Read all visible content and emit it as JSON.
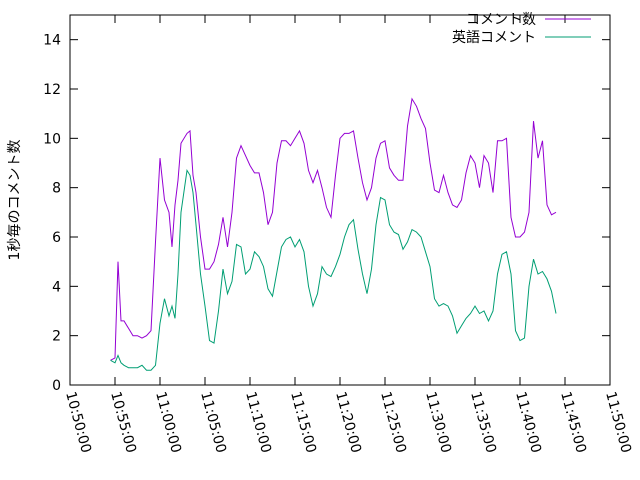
{
  "chart_data": {
    "type": "line",
    "ylabel": "1秒毎のコメント数",
    "xlim": [
      "10:50:00",
      "11:50:00"
    ],
    "ylim": [
      0,
      15
    ],
    "x_ticks": [
      "10:50:00",
      "10:55:00",
      "11:00:00",
      "11:05:00",
      "11:10:00",
      "11:15:00",
      "11:20:00",
      "11:25:00",
      "11:30:00",
      "11:35:00",
      "11:40:00",
      "11:45:00",
      "11:50:00"
    ],
    "y_ticks": [
      0,
      2,
      4,
      6,
      8,
      10,
      12,
      14
    ],
    "grid": false,
    "legend_position": "top-right",
    "series": [
      {
        "name": "コメント数",
        "color": "#9400d3",
        "points": [
          [
            "10:54:30",
            1.0
          ],
          [
            "10:55:00",
            1.1
          ],
          [
            "10:55:20",
            5.0
          ],
          [
            "10:55:40",
            2.6
          ],
          [
            "10:56:00",
            2.6
          ],
          [
            "10:56:30",
            2.3
          ],
          [
            "10:57:00",
            2.0
          ],
          [
            "10:57:30",
            2.0
          ],
          [
            "10:58:00",
            1.9
          ],
          [
            "10:58:30",
            2.0
          ],
          [
            "10:59:00",
            2.2
          ],
          [
            "10:59:30",
            5.8
          ],
          [
            "11:00:00",
            9.2
          ],
          [
            "11:00:30",
            7.5
          ],
          [
            "11:01:00",
            7.0
          ],
          [
            "11:01:20",
            5.6
          ],
          [
            "11:01:40",
            7.3
          ],
          [
            "11:02:00",
            8.3
          ],
          [
            "11:02:20",
            9.8
          ],
          [
            "11:03:00",
            10.2
          ],
          [
            "11:03:20",
            10.3
          ],
          [
            "11:03:40",
            8.5
          ],
          [
            "11:04:00",
            7.8
          ],
          [
            "11:04:30",
            6.0
          ],
          [
            "11:05:00",
            4.7
          ],
          [
            "11:05:30",
            4.7
          ],
          [
            "11:06:00",
            5.0
          ],
          [
            "11:06:30",
            5.7
          ],
          [
            "11:07:00",
            6.8
          ],
          [
            "11:07:30",
            5.6
          ],
          [
            "11:08:00",
            7.0
          ],
          [
            "11:08:30",
            9.2
          ],
          [
            "11:09:00",
            9.7
          ],
          [
            "11:09:30",
            9.3
          ],
          [
            "11:10:00",
            8.9
          ],
          [
            "11:10:30",
            8.6
          ],
          [
            "11:11:00",
            8.6
          ],
          [
            "11:11:30",
            7.8
          ],
          [
            "11:12:00",
            6.5
          ],
          [
            "11:12:30",
            7.0
          ],
          [
            "11:13:00",
            9.0
          ],
          [
            "11:13:30",
            9.9
          ],
          [
            "11:14:00",
            9.9
          ],
          [
            "11:14:30",
            9.7
          ],
          [
            "11:15:00",
            10.0
          ],
          [
            "11:15:30",
            10.3
          ],
          [
            "11:16:00",
            9.8
          ],
          [
            "11:16:30",
            8.7
          ],
          [
            "11:17:00",
            8.2
          ],
          [
            "11:17:30",
            8.7
          ],
          [
            "11:18:00",
            8.0
          ],
          [
            "11:18:30",
            7.2
          ],
          [
            "11:19:00",
            6.8
          ],
          [
            "11:19:30",
            8.5
          ],
          [
            "11:20:00",
            10.0
          ],
          [
            "11:20:30",
            10.2
          ],
          [
            "11:21:00",
            10.2
          ],
          [
            "11:21:30",
            10.3
          ],
          [
            "11:22:00",
            9.2
          ],
          [
            "11:22:30",
            8.2
          ],
          [
            "11:23:00",
            7.5
          ],
          [
            "11:23:30",
            8.0
          ],
          [
            "11:24:00",
            9.2
          ],
          [
            "11:24:30",
            9.8
          ],
          [
            "11:25:00",
            9.9
          ],
          [
            "11:25:30",
            8.8
          ],
          [
            "11:26:00",
            8.5
          ],
          [
            "11:26:30",
            8.3
          ],
          [
            "11:27:00",
            8.3
          ],
          [
            "11:27:30",
            10.5
          ],
          [
            "11:28:00",
            11.6
          ],
          [
            "11:28:30",
            11.3
          ],
          [
            "11:29:00",
            10.8
          ],
          [
            "11:29:30",
            10.4
          ],
          [
            "11:30:00",
            9.0
          ],
          [
            "11:30:30",
            7.9
          ],
          [
            "11:31:00",
            7.8
          ],
          [
            "11:31:30",
            8.5
          ],
          [
            "11:32:00",
            7.8
          ],
          [
            "11:32:30",
            7.3
          ],
          [
            "11:33:00",
            7.2
          ],
          [
            "11:33:30",
            7.5
          ],
          [
            "11:34:00",
            8.6
          ],
          [
            "11:34:30",
            9.3
          ],
          [
            "11:35:00",
            9.0
          ],
          [
            "11:35:30",
            8.0
          ],
          [
            "11:36:00",
            9.3
          ],
          [
            "11:36:30",
            9.0
          ],
          [
            "11:37:00",
            7.8
          ],
          [
            "11:37:30",
            9.9
          ],
          [
            "11:38:00",
            9.9
          ],
          [
            "11:38:30",
            10.0
          ],
          [
            "11:39:00",
            6.8
          ],
          [
            "11:39:30",
            6.0
          ],
          [
            "11:40:00",
            6.0
          ],
          [
            "11:40:30",
            6.2
          ],
          [
            "11:41:00",
            7.0
          ],
          [
            "11:41:30",
            10.7
          ],
          [
            "11:42:00",
            9.2
          ],
          [
            "11:42:30",
            9.9
          ],
          [
            "11:43:00",
            7.3
          ],
          [
            "11:43:30",
            6.9
          ],
          [
            "11:44:00",
            7.0
          ]
        ]
      },
      {
        "name": "英語コメント",
        "color": "#009e73",
        "points": [
          [
            "10:54:30",
            1.0
          ],
          [
            "10:55:00",
            0.9
          ],
          [
            "10:55:20",
            1.2
          ],
          [
            "10:55:40",
            0.9
          ],
          [
            "10:56:00",
            0.8
          ],
          [
            "10:56:30",
            0.7
          ],
          [
            "10:57:00",
            0.7
          ],
          [
            "10:57:30",
            0.7
          ],
          [
            "10:58:00",
            0.8
          ],
          [
            "10:58:30",
            0.6
          ],
          [
            "10:59:00",
            0.6
          ],
          [
            "10:59:30",
            0.8
          ],
          [
            "11:00:00",
            2.5
          ],
          [
            "11:00:30",
            3.5
          ],
          [
            "11:01:00",
            2.8
          ],
          [
            "11:01:20",
            3.2
          ],
          [
            "11:01:40",
            2.7
          ],
          [
            "11:02:00",
            4.5
          ],
          [
            "11:02:20",
            7.0
          ],
          [
            "11:03:00",
            8.7
          ],
          [
            "11:03:20",
            8.5
          ],
          [
            "11:03:40",
            7.8
          ],
          [
            "11:04:00",
            6.5
          ],
          [
            "11:04:30",
            4.5
          ],
          [
            "11:05:00",
            3.2
          ],
          [
            "11:05:30",
            1.8
          ],
          [
            "11:06:00",
            1.7
          ],
          [
            "11:06:30",
            3.0
          ],
          [
            "11:07:00",
            4.7
          ],
          [
            "11:07:30",
            3.7
          ],
          [
            "11:08:00",
            4.2
          ],
          [
            "11:08:30",
            5.7
          ],
          [
            "11:09:00",
            5.6
          ],
          [
            "11:09:30",
            4.5
          ],
          [
            "11:10:00",
            4.7
          ],
          [
            "11:10:30",
            5.4
          ],
          [
            "11:11:00",
            5.2
          ],
          [
            "11:11:30",
            4.8
          ],
          [
            "11:12:00",
            3.9
          ],
          [
            "11:12:30",
            3.6
          ],
          [
            "11:13:00",
            4.6
          ],
          [
            "11:13:30",
            5.6
          ],
          [
            "11:14:00",
            5.9
          ],
          [
            "11:14:30",
            6.0
          ],
          [
            "11:15:00",
            5.6
          ],
          [
            "11:15:30",
            5.9
          ],
          [
            "11:16:00",
            5.4
          ],
          [
            "11:16:30",
            4.0
          ],
          [
            "11:17:00",
            3.2
          ],
          [
            "11:17:30",
            3.7
          ],
          [
            "11:18:00",
            4.8
          ],
          [
            "11:18:30",
            4.5
          ],
          [
            "11:19:00",
            4.4
          ],
          [
            "11:19:30",
            4.8
          ],
          [
            "11:20:00",
            5.3
          ],
          [
            "11:20:30",
            6.0
          ],
          [
            "11:21:00",
            6.5
          ],
          [
            "11:21:30",
            6.7
          ],
          [
            "11:22:00",
            5.5
          ],
          [
            "11:22:30",
            4.5
          ],
          [
            "11:23:00",
            3.7
          ],
          [
            "11:23:30",
            4.7
          ],
          [
            "11:24:00",
            6.5
          ],
          [
            "11:24:30",
            7.6
          ],
          [
            "11:25:00",
            7.5
          ],
          [
            "11:25:30",
            6.5
          ],
          [
            "11:26:00",
            6.2
          ],
          [
            "11:26:30",
            6.1
          ],
          [
            "11:27:00",
            5.5
          ],
          [
            "11:27:30",
            5.8
          ],
          [
            "11:28:00",
            6.3
          ],
          [
            "11:28:30",
            6.2
          ],
          [
            "11:29:00",
            6.0
          ],
          [
            "11:29:30",
            5.4
          ],
          [
            "11:30:00",
            4.8
          ],
          [
            "11:30:30",
            3.5
          ],
          [
            "11:31:00",
            3.2
          ],
          [
            "11:31:30",
            3.3
          ],
          [
            "11:32:00",
            3.2
          ],
          [
            "11:32:30",
            2.8
          ],
          [
            "11:33:00",
            2.1
          ],
          [
            "11:33:30",
            2.4
          ],
          [
            "11:34:00",
            2.7
          ],
          [
            "11:34:30",
            2.9
          ],
          [
            "11:35:00",
            3.2
          ],
          [
            "11:35:30",
            2.9
          ],
          [
            "11:36:00",
            3.0
          ],
          [
            "11:36:30",
            2.6
          ],
          [
            "11:37:00",
            3.0
          ],
          [
            "11:37:30",
            4.5
          ],
          [
            "11:38:00",
            5.3
          ],
          [
            "11:38:30",
            5.4
          ],
          [
            "11:39:00",
            4.5
          ],
          [
            "11:39:30",
            2.2
          ],
          [
            "11:40:00",
            1.8
          ],
          [
            "11:40:30",
            1.9
          ],
          [
            "11:41:00",
            4.0
          ],
          [
            "11:41:30",
            5.1
          ],
          [
            "11:42:00",
            4.5
          ],
          [
            "11:42:30",
            4.6
          ],
          [
            "11:43:00",
            4.3
          ],
          [
            "11:43:30",
            3.8
          ],
          [
            "11:44:00",
            2.9
          ]
        ]
      }
    ]
  }
}
